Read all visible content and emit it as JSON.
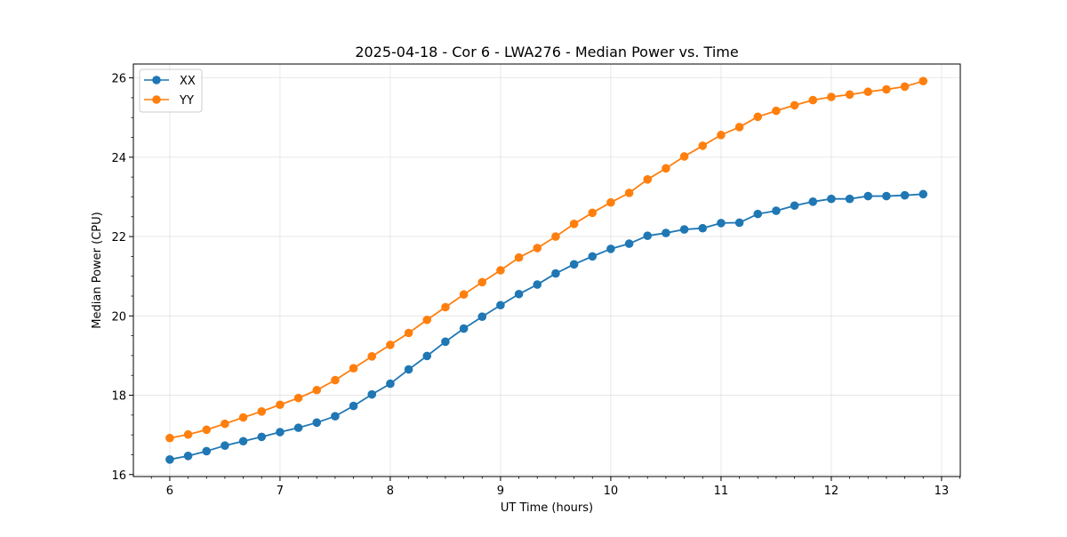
{
  "chart_data": {
    "type": "line",
    "title": "2025-04-18 - Cor 6 - LWA276 - Median Power vs. Time",
    "xlabel": "UT Time (hours)",
    "ylabel": "Median Power (CPU)",
    "xlim": [
      5.67,
      13.17
    ],
    "ylim": [
      15.95,
      26.35
    ],
    "xticks": [
      6,
      7,
      8,
      9,
      10,
      11,
      12,
      13
    ],
    "yticks": [
      16,
      18,
      20,
      22,
      24,
      26
    ],
    "xtick_labels": [
      "6",
      "7",
      "8",
      "9",
      "10",
      "11",
      "12",
      "13"
    ],
    "ytick_labels": [
      "16",
      "18",
      "20",
      "22",
      "24",
      "26"
    ],
    "grid": true,
    "legend_position": "top-left",
    "x": [
      6.0,
      6.1667,
      6.3333,
      6.5,
      6.6667,
      6.8333,
      7.0,
      7.1667,
      7.3333,
      7.5,
      7.6667,
      7.8333,
      8.0,
      8.1667,
      8.3333,
      8.5,
      8.6667,
      8.8333,
      9.0,
      9.1667,
      9.3333,
      9.5,
      9.6667,
      9.8333,
      10.0,
      10.1667,
      10.3333,
      10.5,
      10.6667,
      10.8333,
      11.0,
      11.1667,
      11.3333,
      11.5,
      11.6667,
      11.8333,
      12.0,
      12.1667,
      12.3333,
      12.5,
      12.6667,
      12.8333
    ],
    "series": [
      {
        "name": "XX",
        "color": "#1f77b4",
        "values": [
          16.38,
          16.47,
          16.59,
          16.73,
          16.84,
          16.95,
          17.07,
          17.18,
          17.31,
          17.47,
          17.73,
          18.02,
          18.29,
          18.65,
          18.99,
          19.35,
          19.68,
          19.98,
          20.27,
          20.55,
          20.79,
          21.07,
          21.3,
          21.5,
          21.69,
          21.82,
          22.02,
          22.09,
          22.18,
          22.21,
          22.34,
          22.35,
          22.57,
          22.65,
          22.78,
          22.88,
          22.95,
          22.95,
          23.02,
          23.02,
          23.04,
          23.07
        ]
      },
      {
        "name": "YY",
        "color": "#ff7f0e",
        "values": [
          16.92,
          17.01,
          17.13,
          17.28,
          17.44,
          17.59,
          17.76,
          17.93,
          18.13,
          18.38,
          18.68,
          18.98,
          19.27,
          19.57,
          19.9,
          20.22,
          20.54,
          20.85,
          21.15,
          21.47,
          21.71,
          22.0,
          22.32,
          22.6,
          22.86,
          23.1,
          23.44,
          23.72,
          24.02,
          24.29,
          24.56,
          24.76,
          25.02,
          25.17,
          25.31,
          25.44,
          25.52,
          25.58,
          25.65,
          25.71,
          25.78,
          25.92
        ]
      }
    ]
  }
}
